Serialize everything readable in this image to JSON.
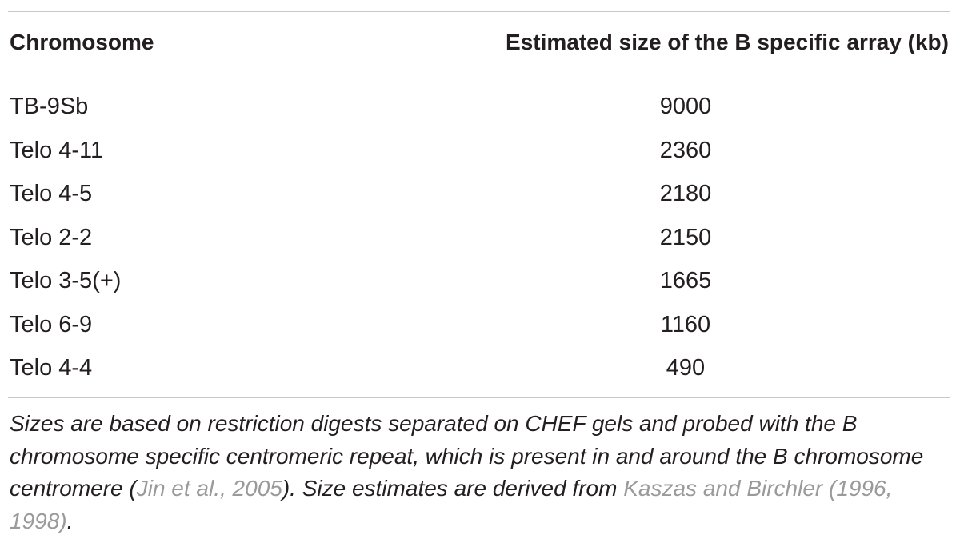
{
  "table": {
    "headers": [
      "Chromosome",
      "Estimated size of the B specific array (kb)"
    ],
    "rows": [
      {
        "chromosome": "TB-9Sb",
        "size_kb": "9000"
      },
      {
        "chromosome": "Telo 4-11",
        "size_kb": "2360"
      },
      {
        "chromosome": "Telo 4-5",
        "size_kb": "2180"
      },
      {
        "chromosome": "Telo 2-2",
        "size_kb": "2150"
      },
      {
        "chromosome": "Telo 3-5(+)",
        "size_kb": "1665"
      },
      {
        "chromosome": "Telo 6-9",
        "size_kb": "1160"
      },
      {
        "chromosome": "Telo 4-4",
        "size_kb": "490"
      }
    ]
  },
  "footnote": {
    "part1": "Sizes are based on restriction digests separated on CHEF gels and probed with the B chromosome specific centromeric repeat, which is present in and around the B chromosome centromere (",
    "ref1": "Jin et al., 2005",
    "part2": "). Size estimates are derived from ",
    "ref2": "Kaszas and Birchler (1996, 1998)",
    "part3": ".",
    "link_color": "#9a9a9a"
  }
}
